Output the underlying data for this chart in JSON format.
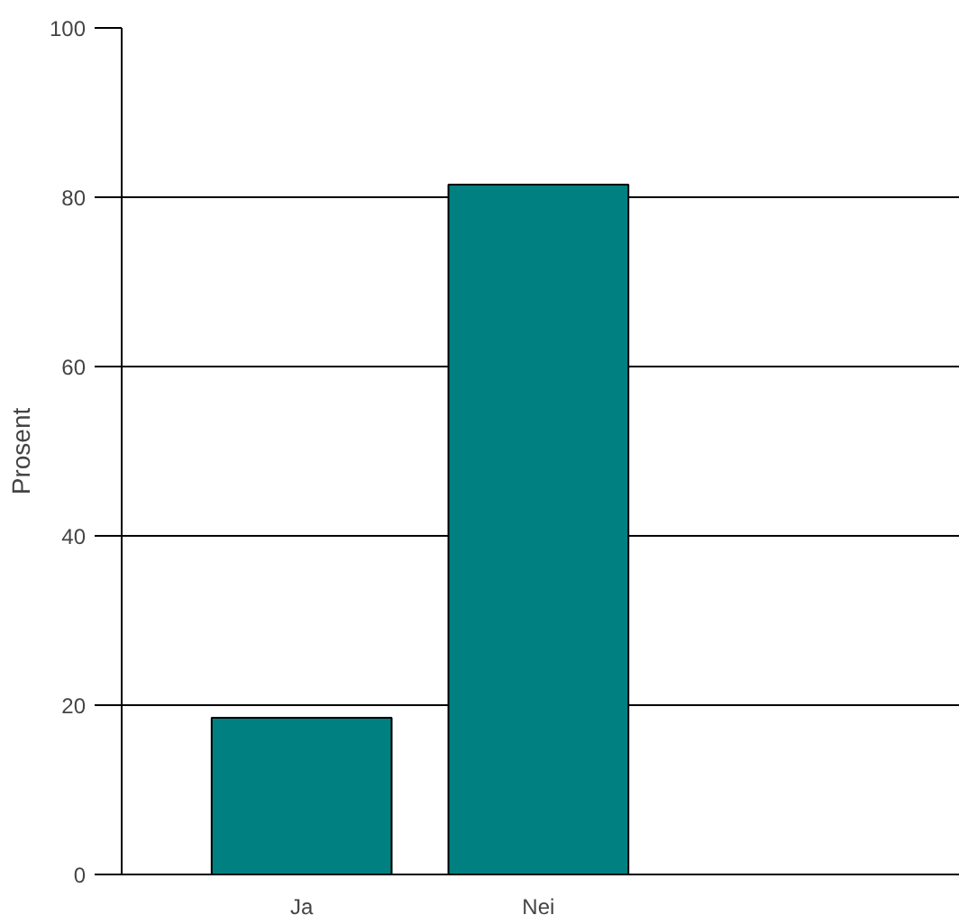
{
  "chart_data": {
    "type": "bar",
    "categories": [
      "Ja",
      "Nei"
    ],
    "values": [
      18.5,
      81.5
    ],
    "color": "#008080",
    "ylabel": "Prosent",
    "ylim": [
      0,
      100
    ],
    "yticks": [
      0,
      20,
      40,
      60,
      80,
      100
    ],
    "grid": "y"
  }
}
